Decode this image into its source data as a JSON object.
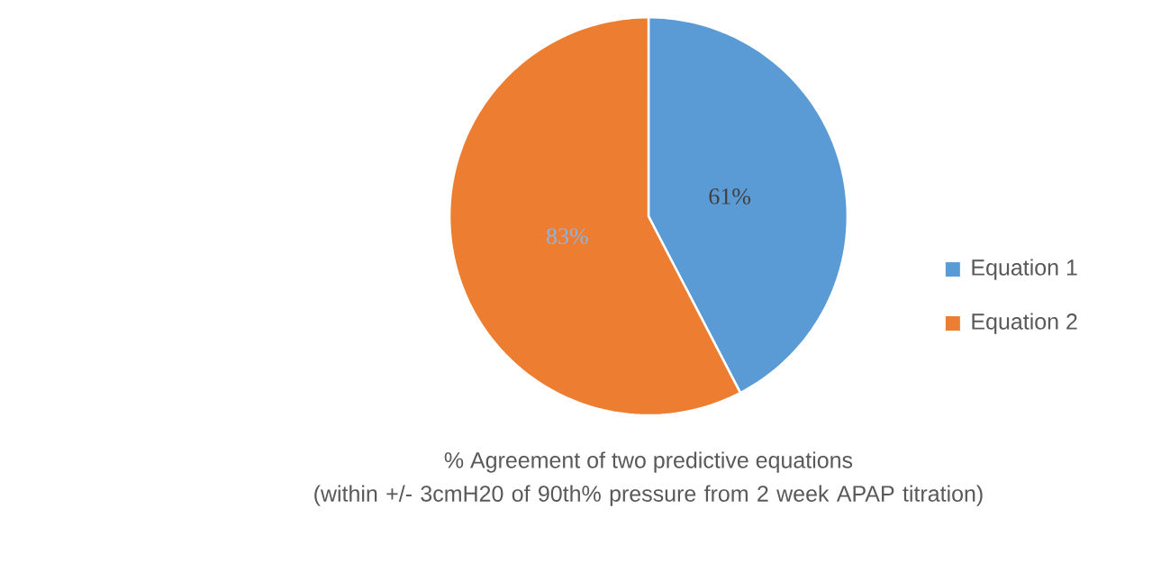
{
  "chart_data": {
    "type": "pie",
    "title": "% Agreement of two predictive equations",
    "subtitle": "(within +/- 3cmH20 of 90th% pressure from 2 week APAP titration)",
    "categories": [
      "Equation 1",
      "Equation 2"
    ],
    "values": [
      61,
      83
    ],
    "colors": [
      "#5b9bd5",
      "#ed7d31"
    ],
    "value_labels": [
      "61%",
      "83%"
    ],
    "legend": "right"
  }
}
